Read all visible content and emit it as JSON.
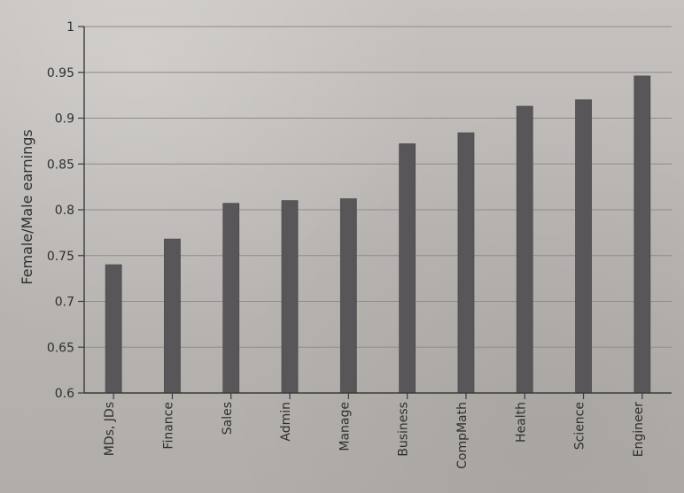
{
  "chart_data": {
    "type": "bar",
    "title": "",
    "xlabel": "",
    "ylabel": "Female/Male earnings",
    "categories": [
      "MDs, JDs",
      "Finance",
      "Sales",
      "Admin",
      "Manage",
      "Business",
      "CompMath",
      "Health",
      "Science",
      "Engineer"
    ],
    "values": [
      0.74,
      0.768,
      0.807,
      0.81,
      0.812,
      0.872,
      0.884,
      0.913,
      0.92,
      0.946
    ],
    "ylim": [
      0.6,
      1.0
    ],
    "yticks": [
      "0.6",
      "0.65",
      "0.7",
      "0.75",
      "0.8",
      "0.85",
      "0.9",
      "0.95",
      "1"
    ],
    "grid": true,
    "legend": "none",
    "colors": {
      "bar": "#595659",
      "axis": "#3b3b3b",
      "grid": "#8f8b88"
    }
  }
}
